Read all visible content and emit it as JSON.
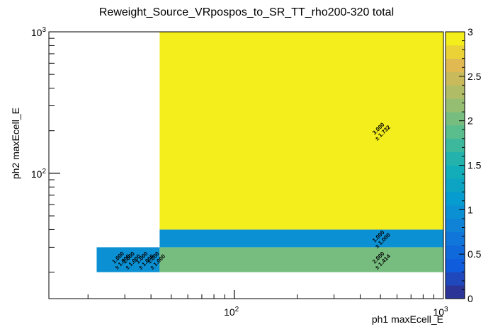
{
  "chart_data": {
    "type": "heatmap",
    "title": "Reweight_Source_VRpospos_to_SR_TT_rho200-320 total",
    "xlabel": "ph1 maxEcell_E",
    "ylabel": "ph2 maxEcell_E",
    "xscale": "log",
    "yscale": "log",
    "xlim": [
      13,
      1000
    ],
    "ylim": [
      13,
      1000
    ],
    "zlim": [
      0,
      3
    ],
    "palette": "kBird",
    "x_ticks": [
      {
        "value": 100,
        "base": "10",
        "exp": "2"
      },
      {
        "value": 1000,
        "base": "10",
        "exp": "3"
      }
    ],
    "y_ticks": [
      {
        "value": 100,
        "base": "10",
        "exp": "2"
      },
      {
        "value": 1000,
        "base": "10",
        "exp": "3"
      }
    ],
    "z_ticks": [
      "0",
      "0.5",
      "1",
      "1.5",
      "2",
      "2.5",
      "3"
    ],
    "cells": [
      {
        "x": [
          22,
          44
        ],
        "y": [
          20,
          30
        ],
        "value": 1.0,
        "labels": [
          {
            "x": 28.5,
            "value": "1.000",
            "error": "± 1.000"
          },
          {
            "x": 32,
            "value": "1.000",
            "error": "± 1.000"
          },
          {
            "x": 37,
            "value": "1.000",
            "error": "± 1.000"
          },
          {
            "x": 42,
            "value": "1.000",
            "error": "± 1.000"
          }
        ]
      },
      {
        "x": [
          44,
          1000
        ],
        "y": [
          20,
          30
        ],
        "value": 2.0,
        "labels": [
          {
            "x": 500,
            "value": "2.000",
            "error": "± 1.414"
          }
        ]
      },
      {
        "x": [
          44,
          1000
        ],
        "y": [
          30,
          40
        ],
        "value": 1.0,
        "labels": [
          {
            "x": 500,
            "value": "1.000",
            "error": "± 1.000"
          }
        ]
      },
      {
        "x": [
          44,
          1000
        ],
        "y": [
          40,
          1000
        ],
        "value": 3.0,
        "labels": [
          {
            "x": 500,
            "value": "3.000",
            "error": "± 1.732"
          }
        ]
      }
    ]
  }
}
